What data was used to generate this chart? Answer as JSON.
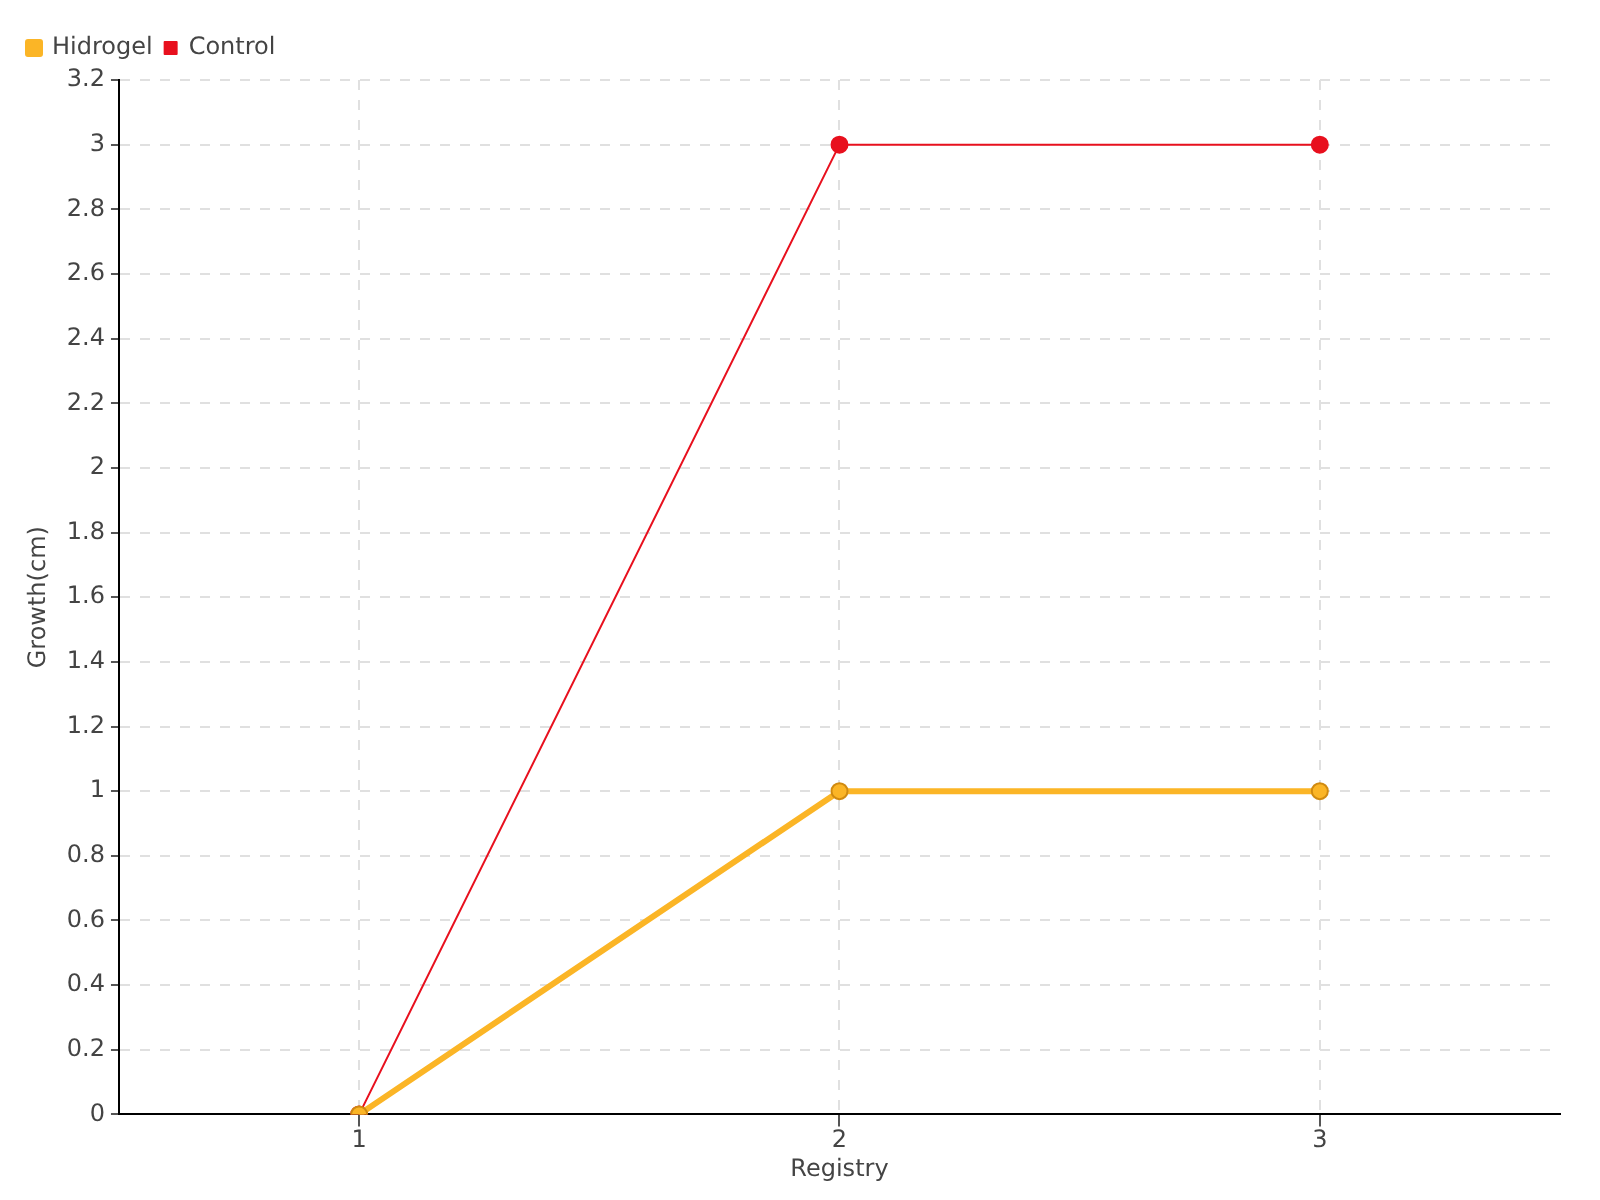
{
  "chart_data": {
    "type": "line",
    "xlabel": "Registry",
    "ylabel": "Growth(cm)",
    "x": [
      1,
      2,
      3
    ],
    "xlim": [
      0.5,
      3.5
    ],
    "xticks": [
      1,
      2,
      3
    ],
    "ylim": [
      0,
      3.2
    ],
    "yticks": [
      0,
      0.2,
      0.4,
      0.6,
      0.8,
      1,
      1.2,
      1.4,
      1.6,
      1.8,
      2,
      2.2,
      2.4,
      2.6,
      2.8,
      3,
      3.2
    ],
    "series": [
      {
        "name": "Hidrogel",
        "color": "#fbb526",
        "values": [
          0,
          1,
          1
        ]
      },
      {
        "name": "Control",
        "color": "#e8101e",
        "values": [
          0,
          3,
          3
        ]
      }
    ],
    "grid": true,
    "legend": "top left",
    "marker": "circle",
    "line_style": "solid"
  }
}
